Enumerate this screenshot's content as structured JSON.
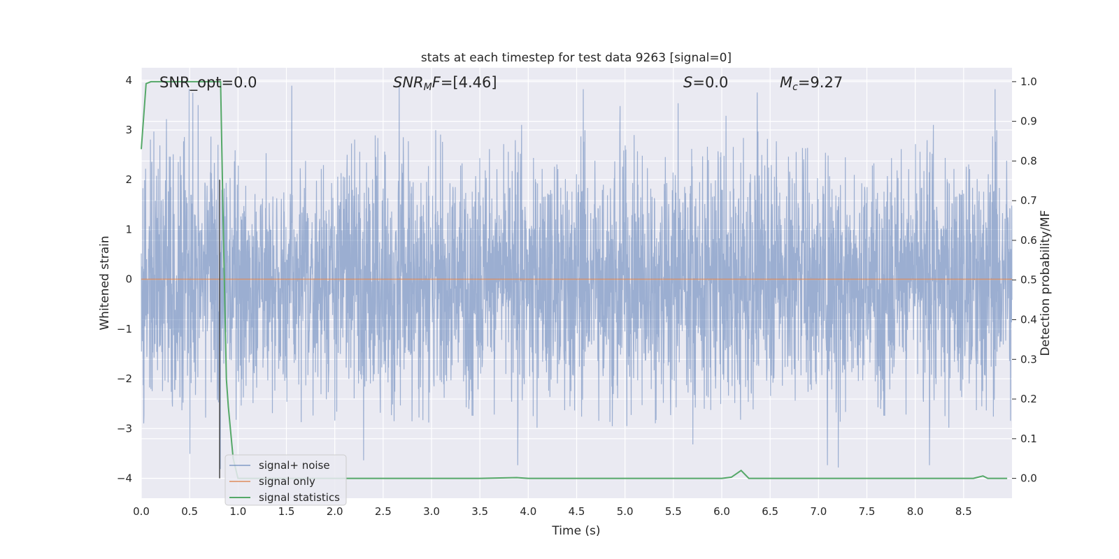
{
  "chart_data": {
    "type": "line",
    "title": "stats at each timestep for test data 9263 [signal=0]",
    "xlabel": "Time (s)",
    "ylabel_left": "Whitened strain",
    "ylabel_right": "Detection probability/MF",
    "xlim": [
      0.0,
      9.0
    ],
    "ylim_left": [
      -4.4,
      4.25
    ],
    "ylim_right": [
      -0.05,
      1.035
    ],
    "xticks": [
      "0.0",
      "0.5",
      "1.0",
      "1.5",
      "2.0",
      "2.5",
      "3.0",
      "3.5",
      "4.0",
      "4.5",
      "5.0",
      "5.5",
      "6.0",
      "6.5",
      "7.0",
      "7.5",
      "8.0",
      "8.5"
    ],
    "yticks_left": [
      "4",
      "3",
      "2",
      "1",
      "0",
      "−1",
      "−2",
      "−3",
      "−4"
    ],
    "yticks_right": [
      "1.0",
      "0.9",
      "0.8",
      "0.7",
      "0.6",
      "0.5",
      "0.4",
      "0.3",
      "0.2",
      "0.1",
      "0.0"
    ],
    "grid": true,
    "background": "#eaeaf2",
    "annotations": [
      {
        "parts": [
          {
            "t": "SNR_opt=0.0",
            "italic": false
          }
        ]
      },
      {
        "parts": [
          {
            "t": "SNR",
            "italic": true
          },
          {
            "t": "M",
            "italic": true,
            "sub": true
          },
          {
            "t": "F",
            "italic": true
          },
          {
            "t": "=[4.46]",
            "italic": false
          }
        ]
      },
      {
        "parts": [
          {
            "t": "S",
            "italic": true
          },
          {
            "t": "=0.0",
            "italic": false
          }
        ]
      },
      {
        "parts": [
          {
            "t": "M",
            "italic": true
          },
          {
            "t": "c",
            "italic": true,
            "sub": true
          },
          {
            "t": "=9.27",
            "italic": false
          }
        ]
      }
    ],
    "vline": {
      "x": 0.81,
      "y_from": -4.0,
      "y_to": 2.0
    },
    "series": [
      {
        "name": "signal+ noise",
        "color": "#4c72b0",
        "opacity": 0.5,
        "kind": "noise",
        "core_band": [
          -1.5,
          1.5
        ],
        "typical_extremes": [
          -2.9,
          3.0
        ],
        "max": 3.9,
        "min": -3.95
      },
      {
        "name": "signal only",
        "color": "#dd8452",
        "opacity": 0.7,
        "x": [
          0.0,
          9.0
        ],
        "y": [
          0.0,
          0.0
        ]
      },
      {
        "name": "signal statistics",
        "color": "#55a868",
        "axis": "right",
        "x": [
          0.0,
          0.05,
          0.1,
          0.15,
          0.2,
          0.3,
          0.4,
          0.5,
          0.6,
          0.7,
          0.8,
          0.82,
          0.85,
          0.88,
          0.9,
          0.95,
          1.0,
          1.5,
          2.0,
          2.5,
          3.0,
          3.5,
          3.88,
          4.0,
          4.5,
          5.0,
          5.5,
          6.0,
          6.1,
          6.2,
          6.28,
          6.5,
          7.0,
          7.5,
          8.0,
          8.5,
          8.6,
          8.7,
          8.75,
          8.8,
          8.95
        ],
        "y": [
          0.83,
          0.995,
          1.0,
          1.0,
          1.0,
          1.0,
          1.0,
          1.0,
          1.0,
          1.0,
          1.0,
          1.0,
          0.6,
          0.25,
          0.18,
          0.05,
          0.0,
          0.0,
          0.0,
          0.0,
          0.0,
          0.0,
          0.002,
          0.0,
          0.0,
          0.0,
          0.0,
          0.0,
          0.003,
          0.02,
          0.0,
          0.0,
          0.0,
          0.0,
          0.0,
          0.0,
          0.0,
          0.006,
          0.0,
          0.0,
          0.0
        ]
      }
    ],
    "legend": {
      "placement": "lower-left",
      "items": [
        "signal+ noise",
        "signal only",
        "signal statistics"
      ]
    }
  }
}
